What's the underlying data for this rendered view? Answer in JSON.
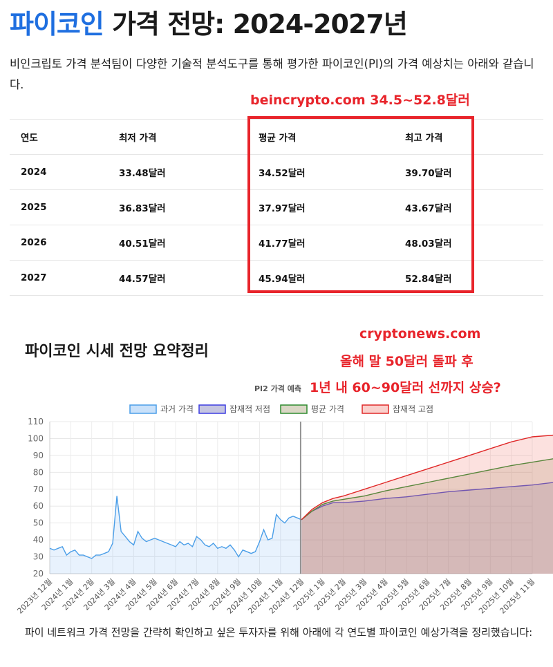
{
  "header": {
    "title_accent": "파이코인",
    "title_rest": " 가격 전망: 2024-2027년",
    "intro": "비인크립토 가격 분석팀이 다양한 기술적 분석도구를 통해 평가한 파이코인(PI)의 가격 예상치는 아래와 같습니다."
  },
  "annotations": {
    "beincrypto": "beincrypto.com 34.5~52.8달러",
    "cryptonews_line1": "cryptonews.com",
    "cryptonews_line2": "올해 말 50달러 돌파 후",
    "cryptonews_line3": "1년 내 60~90달러 선까지 상승?",
    "chart_caption": "PI2 가격 예측",
    "highlight_color": "#e8242b"
  },
  "table": {
    "headers": [
      "연도",
      "최저 가격",
      "평균 가격",
      "최고 가격"
    ],
    "rows": [
      [
        "2024",
        "33.48달러",
        "34.52달러",
        "39.70달러"
      ],
      [
        "2025",
        "36.83달러",
        "37.97달러",
        "43.67달러"
      ],
      [
        "2026",
        "40.51달러",
        "41.77달러",
        "48.03달러"
      ],
      [
        "2027",
        "44.57달러",
        "45.94달러",
        "52.84달러"
      ]
    ]
  },
  "section": {
    "subheading": "파이코인 시세 전망 요약정리",
    "outro": "파이 네트워크 가격 전망을 간략히 확인하고 싶은 투자자를 위해 아래에 각 연도별 파이코인 예상가격을 정리했습니다:"
  },
  "chart_data": {
    "type": "area",
    "ylim": [
      20,
      110
    ],
    "yticks": [
      20,
      30,
      40,
      50,
      60,
      70,
      80,
      90,
      100,
      110
    ],
    "grid": true,
    "legend_position": "top-center",
    "x_labels": [
      "2023년 12월",
      "2024년 1월",
      "2024년 2월",
      "2024년 3월",
      "2024년 4월",
      "2024년 5월",
      "2024년 6월",
      "2024년 7월",
      "2024년 8월",
      "2024년 9월",
      "2024년 10월",
      "2024년 11월",
      "2024년 12월",
      "2025년 1월",
      "2025년 2월",
      "2025년 3월",
      "2025년 4월",
      "2025년 5월",
      "2025년 6월",
      "2025년 7월",
      "2025년 8월",
      "2025년 9월",
      "2025년 10월",
      "2025년 11월"
    ],
    "forecast_start_index": 12,
    "series": [
      {
        "name": "과거 가격",
        "color": "#4a9ee8",
        "fill": "rgba(100,170,240,0.15)",
        "x": [
          0,
          0.2,
          0.4,
          0.6,
          0.8,
          1,
          1.2,
          1.4,
          1.6,
          1.8,
          2,
          2.2,
          2.4,
          2.6,
          2.8,
          3,
          3.2,
          3.4,
          3.6,
          3.8,
          4,
          4.2,
          4.4,
          4.6,
          4.8,
          5,
          5.2,
          5.4,
          5.6,
          5.8,
          6,
          6.2,
          6.4,
          6.6,
          6.8,
          7,
          7.2,
          7.4,
          7.6,
          7.8,
          8,
          8.2,
          8.4,
          8.6,
          8.8,
          9,
          9.2,
          9.4,
          9.6,
          9.8,
          10,
          10.2,
          10.4,
          10.6,
          10.8,
          11,
          11.2,
          11.4,
          11.6,
          11.8,
          12
        ],
        "y": [
          35,
          34,
          35,
          36,
          31,
          33,
          34,
          31,
          31,
          30,
          29,
          31,
          31,
          32,
          33,
          38,
          66,
          45,
          42,
          39,
          37,
          45,
          41,
          39,
          40,
          41,
          40,
          39,
          38,
          37,
          36,
          39,
          37,
          38,
          36,
          42,
          40,
          37,
          36,
          38,
          35,
          36,
          35,
          37,
          34,
          30,
          34,
          33,
          32,
          33,
          39,
          46,
          40,
          41,
          55,
          52,
          50,
          53,
          54,
          53,
          52
        ]
      },
      {
        "name": "잠재적 저점",
        "color": "#3c3ce0",
        "fill": "rgba(90,90,170,0.20)",
        "x": [
          12,
          12.5,
          13,
          13.5,
          14,
          15,
          16,
          17,
          18,
          19,
          20,
          21,
          22,
          23,
          24
        ],
        "y": [
          52,
          57,
          60,
          62,
          62,
          63,
          64.5,
          65.5,
          67,
          68.5,
          69.5,
          70.5,
          71.5,
          72.5,
          74
        ]
      },
      {
        "name": "평균 가격",
        "color": "#2e8b2e",
        "fill": "rgba(150,140,90,0.22)",
        "x": [
          12,
          12.5,
          13,
          13.5,
          14,
          15,
          16,
          17,
          18,
          19,
          20,
          21,
          22,
          23,
          24
        ],
        "y": [
          52,
          57,
          61,
          63,
          64,
          66,
          69,
          71.5,
          74,
          76.5,
          79,
          81.5,
          84,
          86,
          88
        ]
      },
      {
        "name": "잠재적 고점",
        "color": "#e02828",
        "fill": "rgba(240,120,110,0.22)",
        "x": [
          12,
          12.5,
          13,
          13.5,
          14,
          15,
          16,
          17,
          18,
          19,
          20,
          21,
          22,
          23,
          24
        ],
        "y": [
          52,
          58,
          62,
          64.5,
          66,
          70,
          74,
          78,
          82,
          86,
          90,
          94,
          98,
          101,
          102
        ]
      }
    ]
  }
}
